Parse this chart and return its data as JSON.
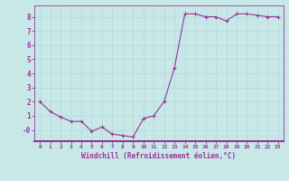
{
  "x": [
    0,
    1,
    2,
    3,
    4,
    5,
    6,
    7,
    8,
    9,
    10,
    11,
    12,
    13,
    14,
    15,
    16,
    17,
    18,
    19,
    20,
    21,
    22,
    23
  ],
  "y": [
    2.0,
    1.3,
    0.9,
    0.6,
    0.6,
    -0.1,
    0.2,
    -0.3,
    -0.4,
    -0.5,
    0.8,
    1.0,
    2.0,
    4.4,
    8.2,
    8.2,
    8.0,
    8.0,
    7.7,
    8.2,
    8.2,
    8.1,
    8.0,
    8.0
  ],
  "line_color": "#993399",
  "marker": "+",
  "bg_color": "#c8e8e8",
  "grid_color": "#aad4d4",
  "xlabel": "Windchill (Refroidissement éolien,°C)",
  "xlabel_color": "#993399",
  "tick_color": "#993399",
  "ylim": [
    -0.8,
    8.8
  ],
  "xlim": [
    -0.5,
    23.5
  ],
  "ytick_vals": [
    0,
    1,
    2,
    3,
    4,
    5,
    6,
    7,
    8
  ],
  "ytick_labels": [
    "-0",
    "1",
    "2",
    "3",
    "4",
    "5",
    "6",
    "7",
    "8"
  ],
  "xticks": [
    0,
    1,
    2,
    3,
    4,
    5,
    6,
    7,
    8,
    9,
    10,
    11,
    12,
    13,
    14,
    15,
    16,
    17,
    18,
    19,
    20,
    21,
    22,
    23
  ]
}
